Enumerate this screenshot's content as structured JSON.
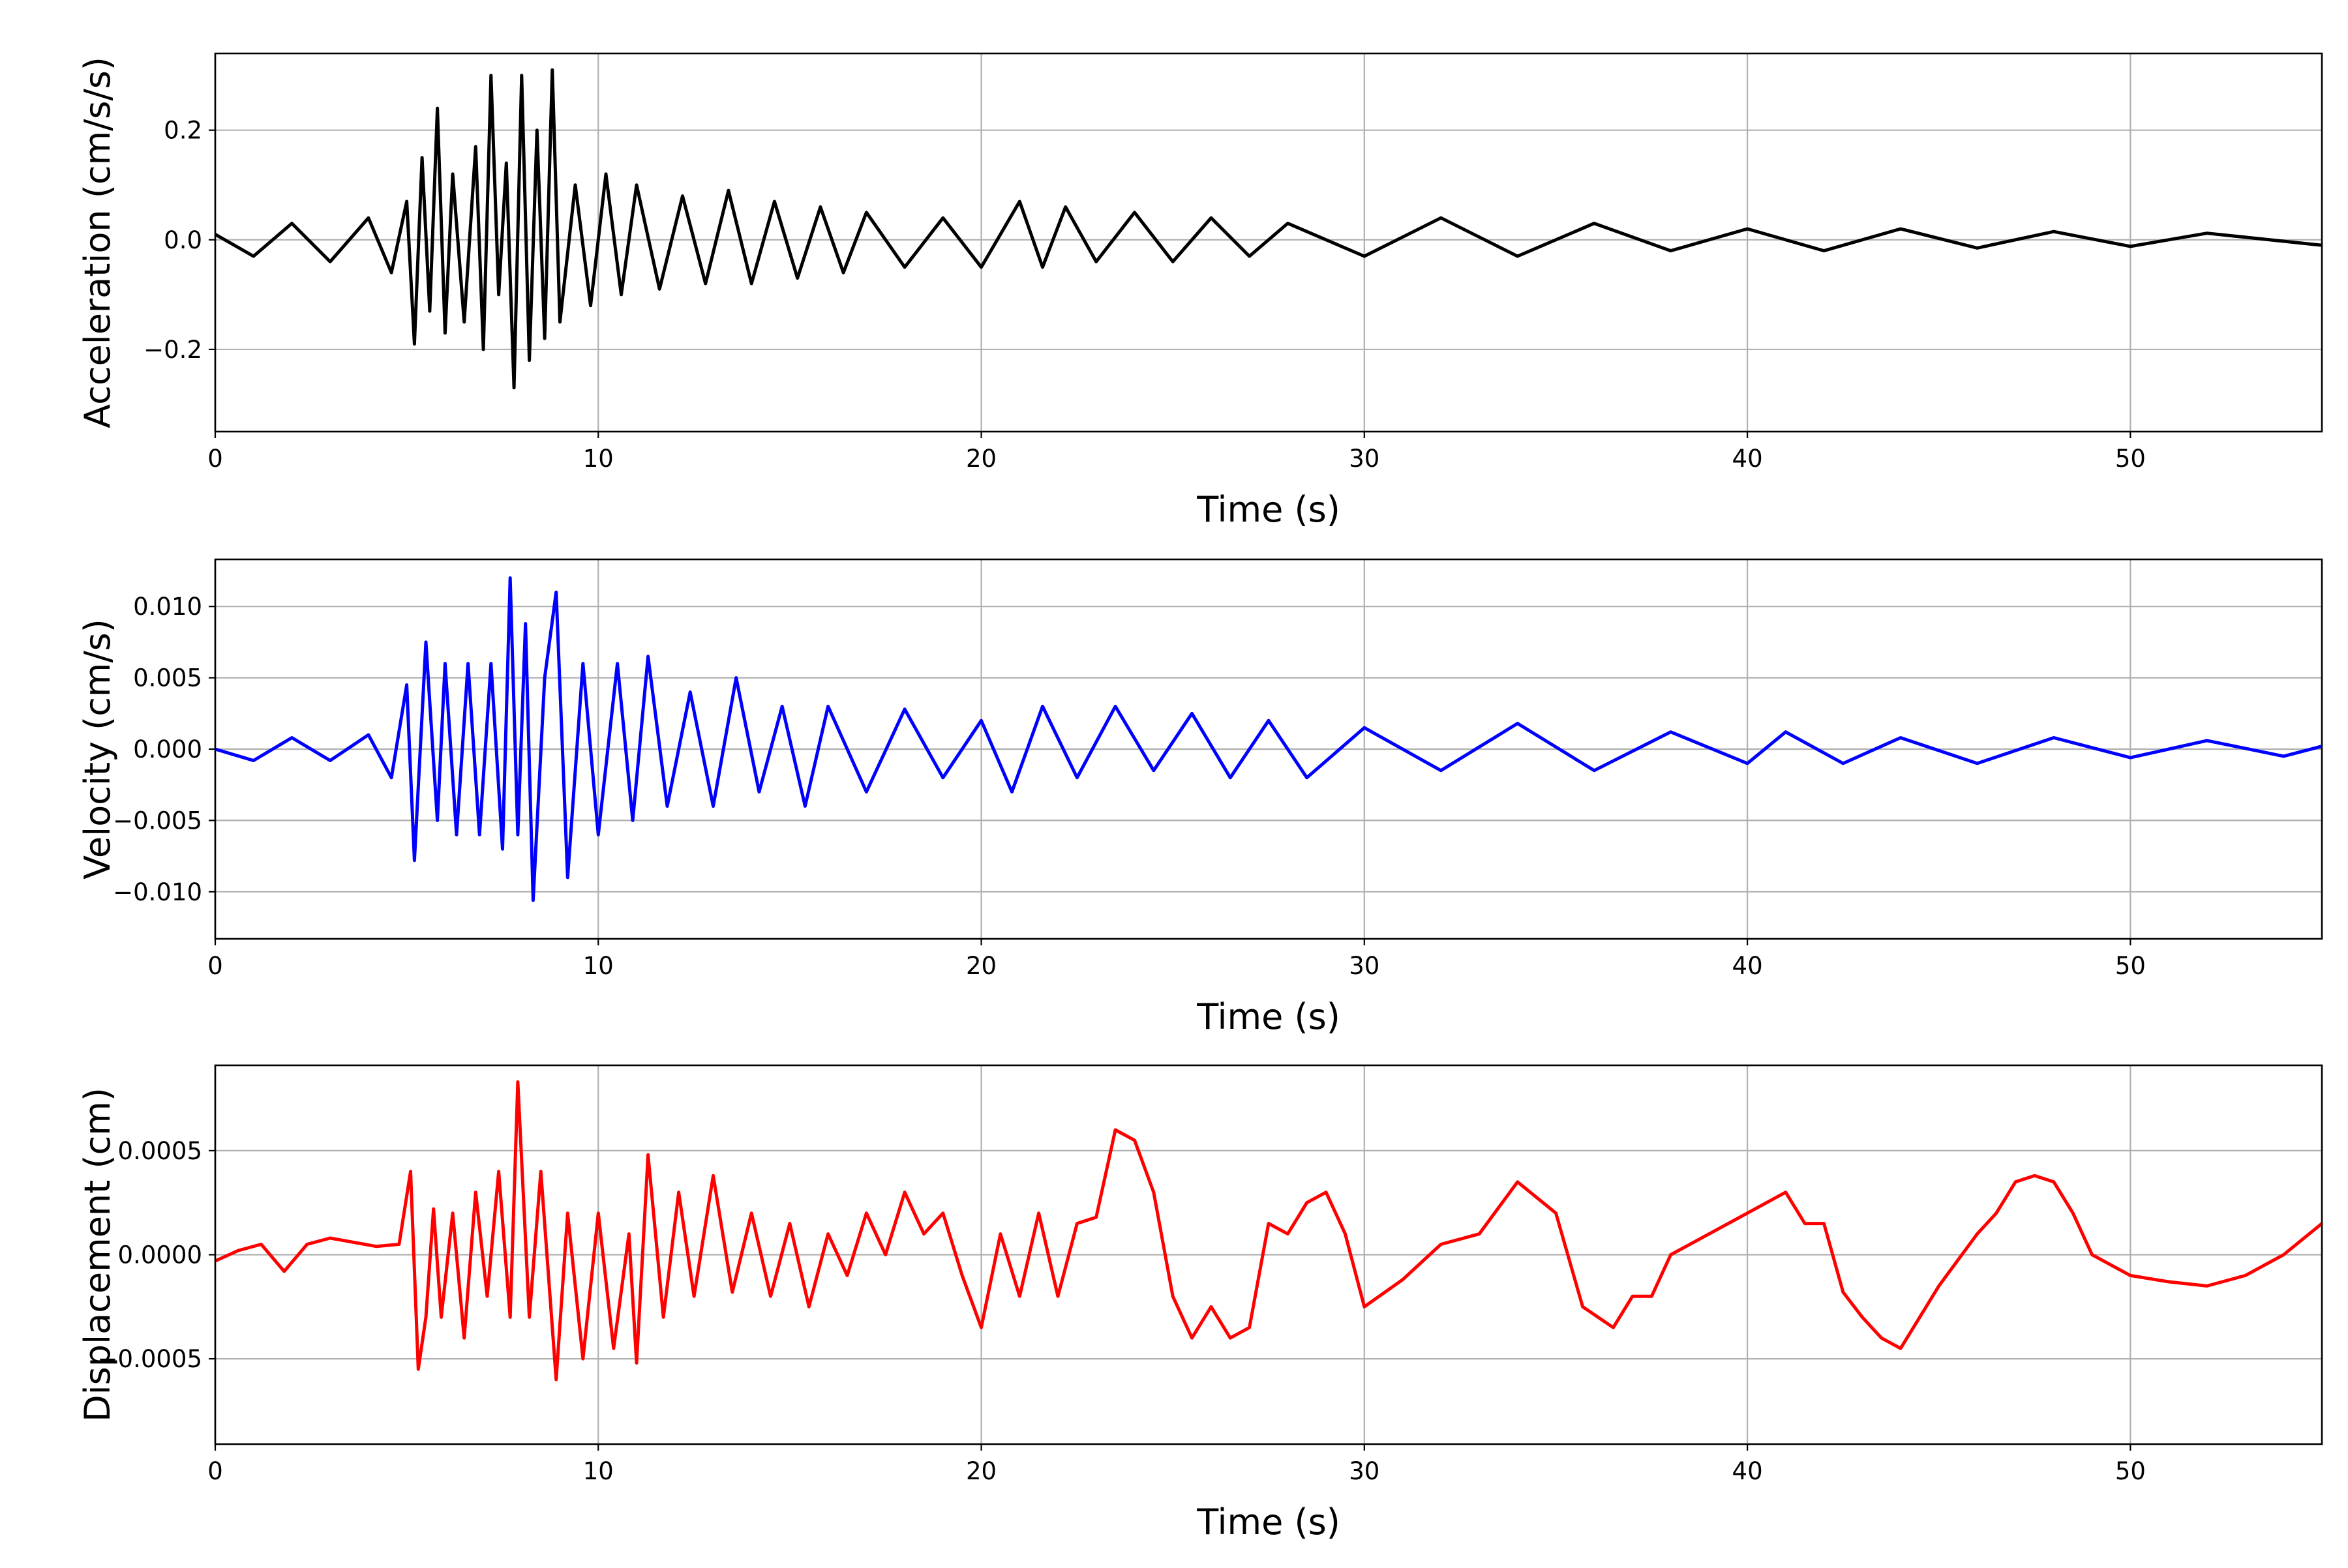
{
  "figure": {
    "x_label": "Time (s)",
    "x_ticks": [
      0,
      10,
      20,
      30,
      40,
      50
    ],
    "x_tick_labels": [
      "0",
      "10",
      "20",
      "30",
      "40",
      "50"
    ]
  },
  "chart_data": [
    {
      "type": "line",
      "ylabel": "Acceleration (cm/s/s)",
      "xlabel": "Time (s)",
      "xlim": [
        0,
        55
      ],
      "ylim": [
        -0.35,
        0.34
      ],
      "yticks": [
        -0.2,
        0.0,
        0.2
      ],
      "ytick_labels": [
        "−0.2",
        "0.0",
        "0.2"
      ],
      "grid": true,
      "legend": "none",
      "color": "#000000",
      "series": [
        {
          "x": [
            0,
            1,
            2,
            3,
            4,
            4.6,
            5.0,
            5.2,
            5.4,
            5.6,
            5.8,
            6.0,
            6.2,
            6.5,
            6.8,
            7.0,
            7.2,
            7.4,
            7.6,
            7.8,
            8.0,
            8.2,
            8.4,
            8.6,
            8.8,
            9.0,
            9.4,
            9.8,
            10.2,
            10.6,
            11.0,
            11.6,
            12.2,
            12.8,
            13.4,
            14.0,
            14.6,
            15.2,
            15.8,
            16.4,
            17.0,
            18.0,
            19.0,
            20.0,
            21.0,
            21.6,
            22.2,
            23.0,
            24.0,
            25.0,
            26.0,
            27.0,
            28.0,
            30.0,
            32.0,
            34.0,
            36.0,
            38.0,
            40.0,
            42.0,
            44.0,
            46.0,
            48.0,
            50.0,
            52.0,
            55.0
          ],
          "y": [
            0.01,
            -0.03,
            0.03,
            -0.04,
            0.04,
            -0.06,
            0.07,
            -0.19,
            0.15,
            -0.13,
            0.24,
            -0.17,
            0.12,
            -0.15,
            0.17,
            -0.2,
            0.3,
            -0.1,
            0.14,
            -0.27,
            0.3,
            -0.22,
            0.2,
            -0.18,
            0.31,
            -0.15,
            0.1,
            -0.12,
            0.12,
            -0.1,
            0.1,
            -0.09,
            0.08,
            -0.08,
            0.09,
            -0.08,
            0.07,
            -0.07,
            0.06,
            -0.06,
            0.05,
            -0.05,
            0.04,
            -0.05,
            0.07,
            -0.05,
            0.06,
            -0.04,
            0.05,
            -0.04,
            0.04,
            -0.03,
            0.03,
            -0.03,
            0.04,
            -0.03,
            0.03,
            -0.02,
            0.02,
            -0.02,
            0.02,
            -0.015,
            0.015,
            -0.012,
            0.012,
            -0.01
          ]
        }
      ]
    },
    {
      "type": "line",
      "ylabel": "Velocity (cm/s)",
      "xlabel": "Time (s)",
      "xlim": [
        0,
        55
      ],
      "ylim": [
        -0.0133,
        0.0133
      ],
      "yticks": [
        -0.01,
        -0.005,
        0.0,
        0.005,
        0.01
      ],
      "ytick_labels": [
        "−0.010",
        "−0.005",
        "0.000",
        "0.005",
        "0.010"
      ],
      "grid": true,
      "legend": "none",
      "color": "#0000ff",
      "series": [
        {
          "x": [
            0,
            1,
            2,
            3,
            4,
            4.6,
            5.0,
            5.2,
            5.5,
            5.8,
            6.0,
            6.3,
            6.6,
            6.9,
            7.2,
            7.5,
            7.7,
            7.9,
            8.1,
            8.3,
            8.6,
            8.9,
            9.2,
            9.6,
            10.0,
            10.5,
            10.9,
            11.3,
            11.8,
            12.4,
            13.0,
            13.6,
            14.2,
            14.8,
            15.4,
            16.0,
            17.0,
            18.0,
            19.0,
            20.0,
            20.8,
            21.6,
            22.5,
            23.5,
            24.5,
            25.5,
            26.5,
            27.5,
            28.5,
            30.0,
            32.0,
            34.0,
            36.0,
            38.0,
            40.0,
            41.0,
            42.5,
            44.0,
            46.0,
            48.0,
            50.0,
            52.0,
            54.0,
            55.0
          ],
          "y": [
            0.0,
            -0.0008,
            0.0008,
            -0.0008,
            0.001,
            -0.002,
            0.0045,
            -0.0078,
            0.0075,
            -0.005,
            0.006,
            -0.006,
            0.006,
            -0.006,
            0.006,
            -0.007,
            0.012,
            -0.006,
            0.0088,
            -0.0106,
            0.005,
            0.011,
            -0.009,
            0.006,
            -0.006,
            0.006,
            -0.005,
            0.0065,
            -0.004,
            0.004,
            -0.004,
            0.005,
            -0.003,
            0.003,
            -0.004,
            0.003,
            -0.003,
            0.0028,
            -0.002,
            0.002,
            -0.003,
            0.003,
            -0.002,
            0.003,
            -0.0015,
            0.0025,
            -0.002,
            0.002,
            -0.002,
            0.0015,
            -0.0015,
            0.0018,
            -0.0015,
            0.0012,
            -0.001,
            0.0012,
            -0.001,
            0.0008,
            -0.001,
            0.0008,
            -0.0006,
            0.0006,
            -0.0005,
            0.0002
          ]
        }
      ]
    },
    {
      "type": "line",
      "ylabel": "Displacement (cm)",
      "xlabel": "Time (s)",
      "xlim": [
        0,
        55
      ],
      "ylim": [
        -0.00091,
        0.00091
      ],
      "yticks": [
        -0.0005,
        0.0,
        0.0005
      ],
      "ytick_labels": [
        "−0.0005",
        "0.0000",
        "0.0005"
      ],
      "grid": true,
      "legend": "none",
      "color": "#ff0000",
      "series": [
        {
          "x": [
            0,
            0.6,
            1.2,
            1.8,
            2.4,
            3.0,
            3.6,
            4.2,
            4.8,
            5.1,
            5.3,
            5.5,
            5.7,
            5.9,
            6.2,
            6.5,
            6.8,
            7.1,
            7.4,
            7.7,
            7.9,
            8.2,
            8.5,
            8.9,
            9.2,
            9.6,
            10.0,
            10.4,
            10.8,
            11.0,
            11.3,
            11.7,
            12.1,
            12.5,
            13.0,
            13.5,
            14.0,
            14.5,
            15.0,
            15.5,
            16.0,
            16.5,
            17.0,
            17.5,
            18.0,
            18.5,
            19.0,
            19.5,
            20.0,
            20.5,
            21.0,
            21.5,
            22.0,
            22.5,
            23.0,
            23.5,
            24.0,
            24.5,
            25.0,
            25.5,
            26.0,
            26.5,
            27.0,
            27.5,
            28.0,
            28.5,
            29.0,
            29.5,
            30.0,
            31.0,
            32.0,
            33.0,
            34.0,
            35.0,
            35.7,
            36.5,
            37.0,
            37.5,
            38.0,
            39.0,
            40.0,
            41.0,
            41.5,
            42.0,
            42.5,
            43.0,
            43.5,
            44.0,
            44.5,
            45.0,
            46.0,
            46.5,
            47.0,
            47.5,
            48.0,
            48.5,
            49.0,
            50.0,
            51.0,
            52.0,
            53.0,
            54.0,
            55.0
          ],
          "y": [
            -3e-05,
            2e-05,
            5e-05,
            -8e-05,
            5e-05,
            8e-05,
            6e-05,
            4e-05,
            5e-05,
            0.0004,
            -0.00055,
            -0.0003,
            0.00022,
            -0.0003,
            0.0002,
            -0.0004,
            0.0003,
            -0.0002,
            0.0004,
            -0.0003,
            0.00083,
            -0.0003,
            0.0004,
            -0.0006,
            0.0002,
            -0.0005,
            0.0002,
            -0.00045,
            0.0001,
            -0.00052,
            0.00048,
            -0.0003,
            0.0003,
            -0.0002,
            0.00038,
            -0.00018,
            0.0002,
            -0.0002,
            0.00015,
            -0.00025,
            0.0001,
            -0.0001,
            0.0002,
            0.0,
            0.0003,
            0.0001,
            0.0002,
            -0.0001,
            -0.00035,
            0.0001,
            -0.0002,
            0.0002,
            -0.0002,
            0.00015,
            0.00018,
            0.0006,
            0.00055,
            0.0003,
            -0.0002,
            -0.0004,
            -0.00025,
            -0.0004,
            -0.00035,
            0.00015,
            0.0001,
            0.00025,
            0.0003,
            0.0001,
            -0.00025,
            -0.00012,
            5e-05,
            0.0001,
            0.00035,
            0.0002,
            -0.00025,
            -0.00035,
            -0.0002,
            -0.0002,
            0.0,
            0.0001,
            0.0002,
            0.0003,
            0.00015,
            0.00015,
            -0.00018,
            -0.0003,
            -0.0004,
            -0.00045,
            -0.0003,
            -0.00015,
            0.0001,
            0.0002,
            0.00035,
            0.00038,
            0.00035,
            0.0002,
            0.0,
            -0.0001,
            -0.00013,
            -0.00015,
            -0.0001,
            0.0,
            0.00015
          ]
        }
      ]
    }
  ]
}
